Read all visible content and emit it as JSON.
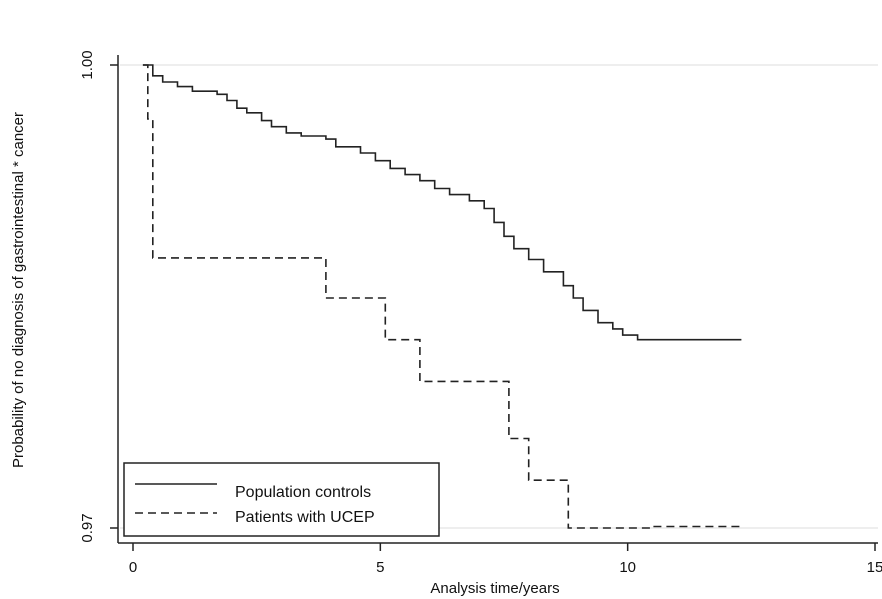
{
  "chart_data": {
    "type": "line",
    "title": "",
    "xlabel": "Analysis time/years",
    "ylabel": "Probability of no diagnosis of gastrointestinal * cancer",
    "xlim": [
      0,
      15
    ],
    "ylim": [
      0.97,
      1.0
    ],
    "x_ticks": [
      0,
      5,
      10,
      15
    ],
    "x_tick_labels": [
      "0",
      "5",
      "10",
      "15"
    ],
    "y_ticks": [
      0.97,
      1.0
    ],
    "y_tick_labels": [
      "0.97",
      "1.00"
    ],
    "grid": "horizontal",
    "legend_position": "bottom-left",
    "step": true,
    "series": [
      {
        "name": "Population controls",
        "style": "solid",
        "color": "#222222",
        "x": [
          0.2,
          0.4,
          0.6,
          0.9,
          1.2,
          1.7,
          1.9,
          2.1,
          2.3,
          2.6,
          2.8,
          3.1,
          3.4,
          3.9,
          4.1,
          4.6,
          4.9,
          5.2,
          5.5,
          5.8,
          6.1,
          6.4,
          6.8,
          7.1,
          7.3,
          7.5,
          7.7,
          8.0,
          8.3,
          8.7,
          8.9,
          9.1,
          9.4,
          9.7,
          9.9,
          10.2,
          12.3
        ],
        "y": [
          1.0,
          0.9993,
          0.9989,
          0.9986,
          0.9983,
          0.9981,
          0.9977,
          0.9972,
          0.9969,
          0.9964,
          0.996,
          0.9956,
          0.9954,
          0.9952,
          0.9947,
          0.9943,
          0.9938,
          0.9933,
          0.9929,
          0.9925,
          0.992,
          0.9916,
          0.9912,
          0.9907,
          0.9898,
          0.9889,
          0.9881,
          0.9874,
          0.9866,
          0.9857,
          0.9849,
          0.9841,
          0.9833,
          0.9829,
          0.9825,
          0.9822,
          0.9822
        ]
      },
      {
        "name": "Patients with UCEP",
        "style": "dashed",
        "color": "#222222",
        "x": [
          0.2,
          0.3,
          0.4,
          3.9,
          5.1,
          5.8,
          7.6,
          8.0,
          8.8,
          10.5,
          12.3
        ],
        "y": [
          1.0,
          0.9965,
          0.9875,
          0.9849,
          0.9822,
          0.9795,
          0.9758,
          0.9731,
          0.97,
          0.9701,
          0.9701
        ]
      }
    ]
  }
}
